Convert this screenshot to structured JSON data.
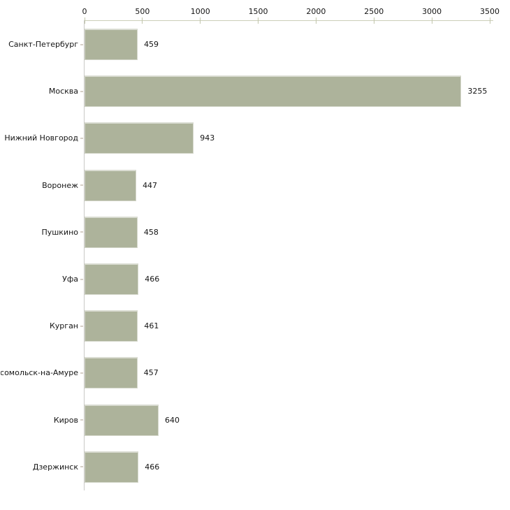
{
  "chart_data": {
    "type": "bar",
    "orientation": "horizontal",
    "title": "",
    "xlabel": "",
    "ylabel": "",
    "categories": [
      "Санкт-Петербург",
      "Москва",
      "Нижний Новгород",
      "Воронеж",
      "Пушкино",
      "Уфа",
      "Курган",
      "Комсомольск-на-Амуре",
      "Киров",
      "Дзержинск"
    ],
    "values": [
      459,
      3255,
      943,
      447,
      458,
      466,
      461,
      457,
      640,
      466
    ],
    "xlim": [
      0,
      3500
    ],
    "x_ticks": [
      0,
      500,
      1000,
      1500,
      2000,
      2500,
      3000,
      3500
    ],
    "x_axis_position": "top",
    "grid": false,
    "legend": false,
    "bar_color": "#adb39b",
    "bar_highlight_color": "#ced2ba",
    "axis_line_color": "#cbceb8",
    "value_label_color": "#141414"
  }
}
